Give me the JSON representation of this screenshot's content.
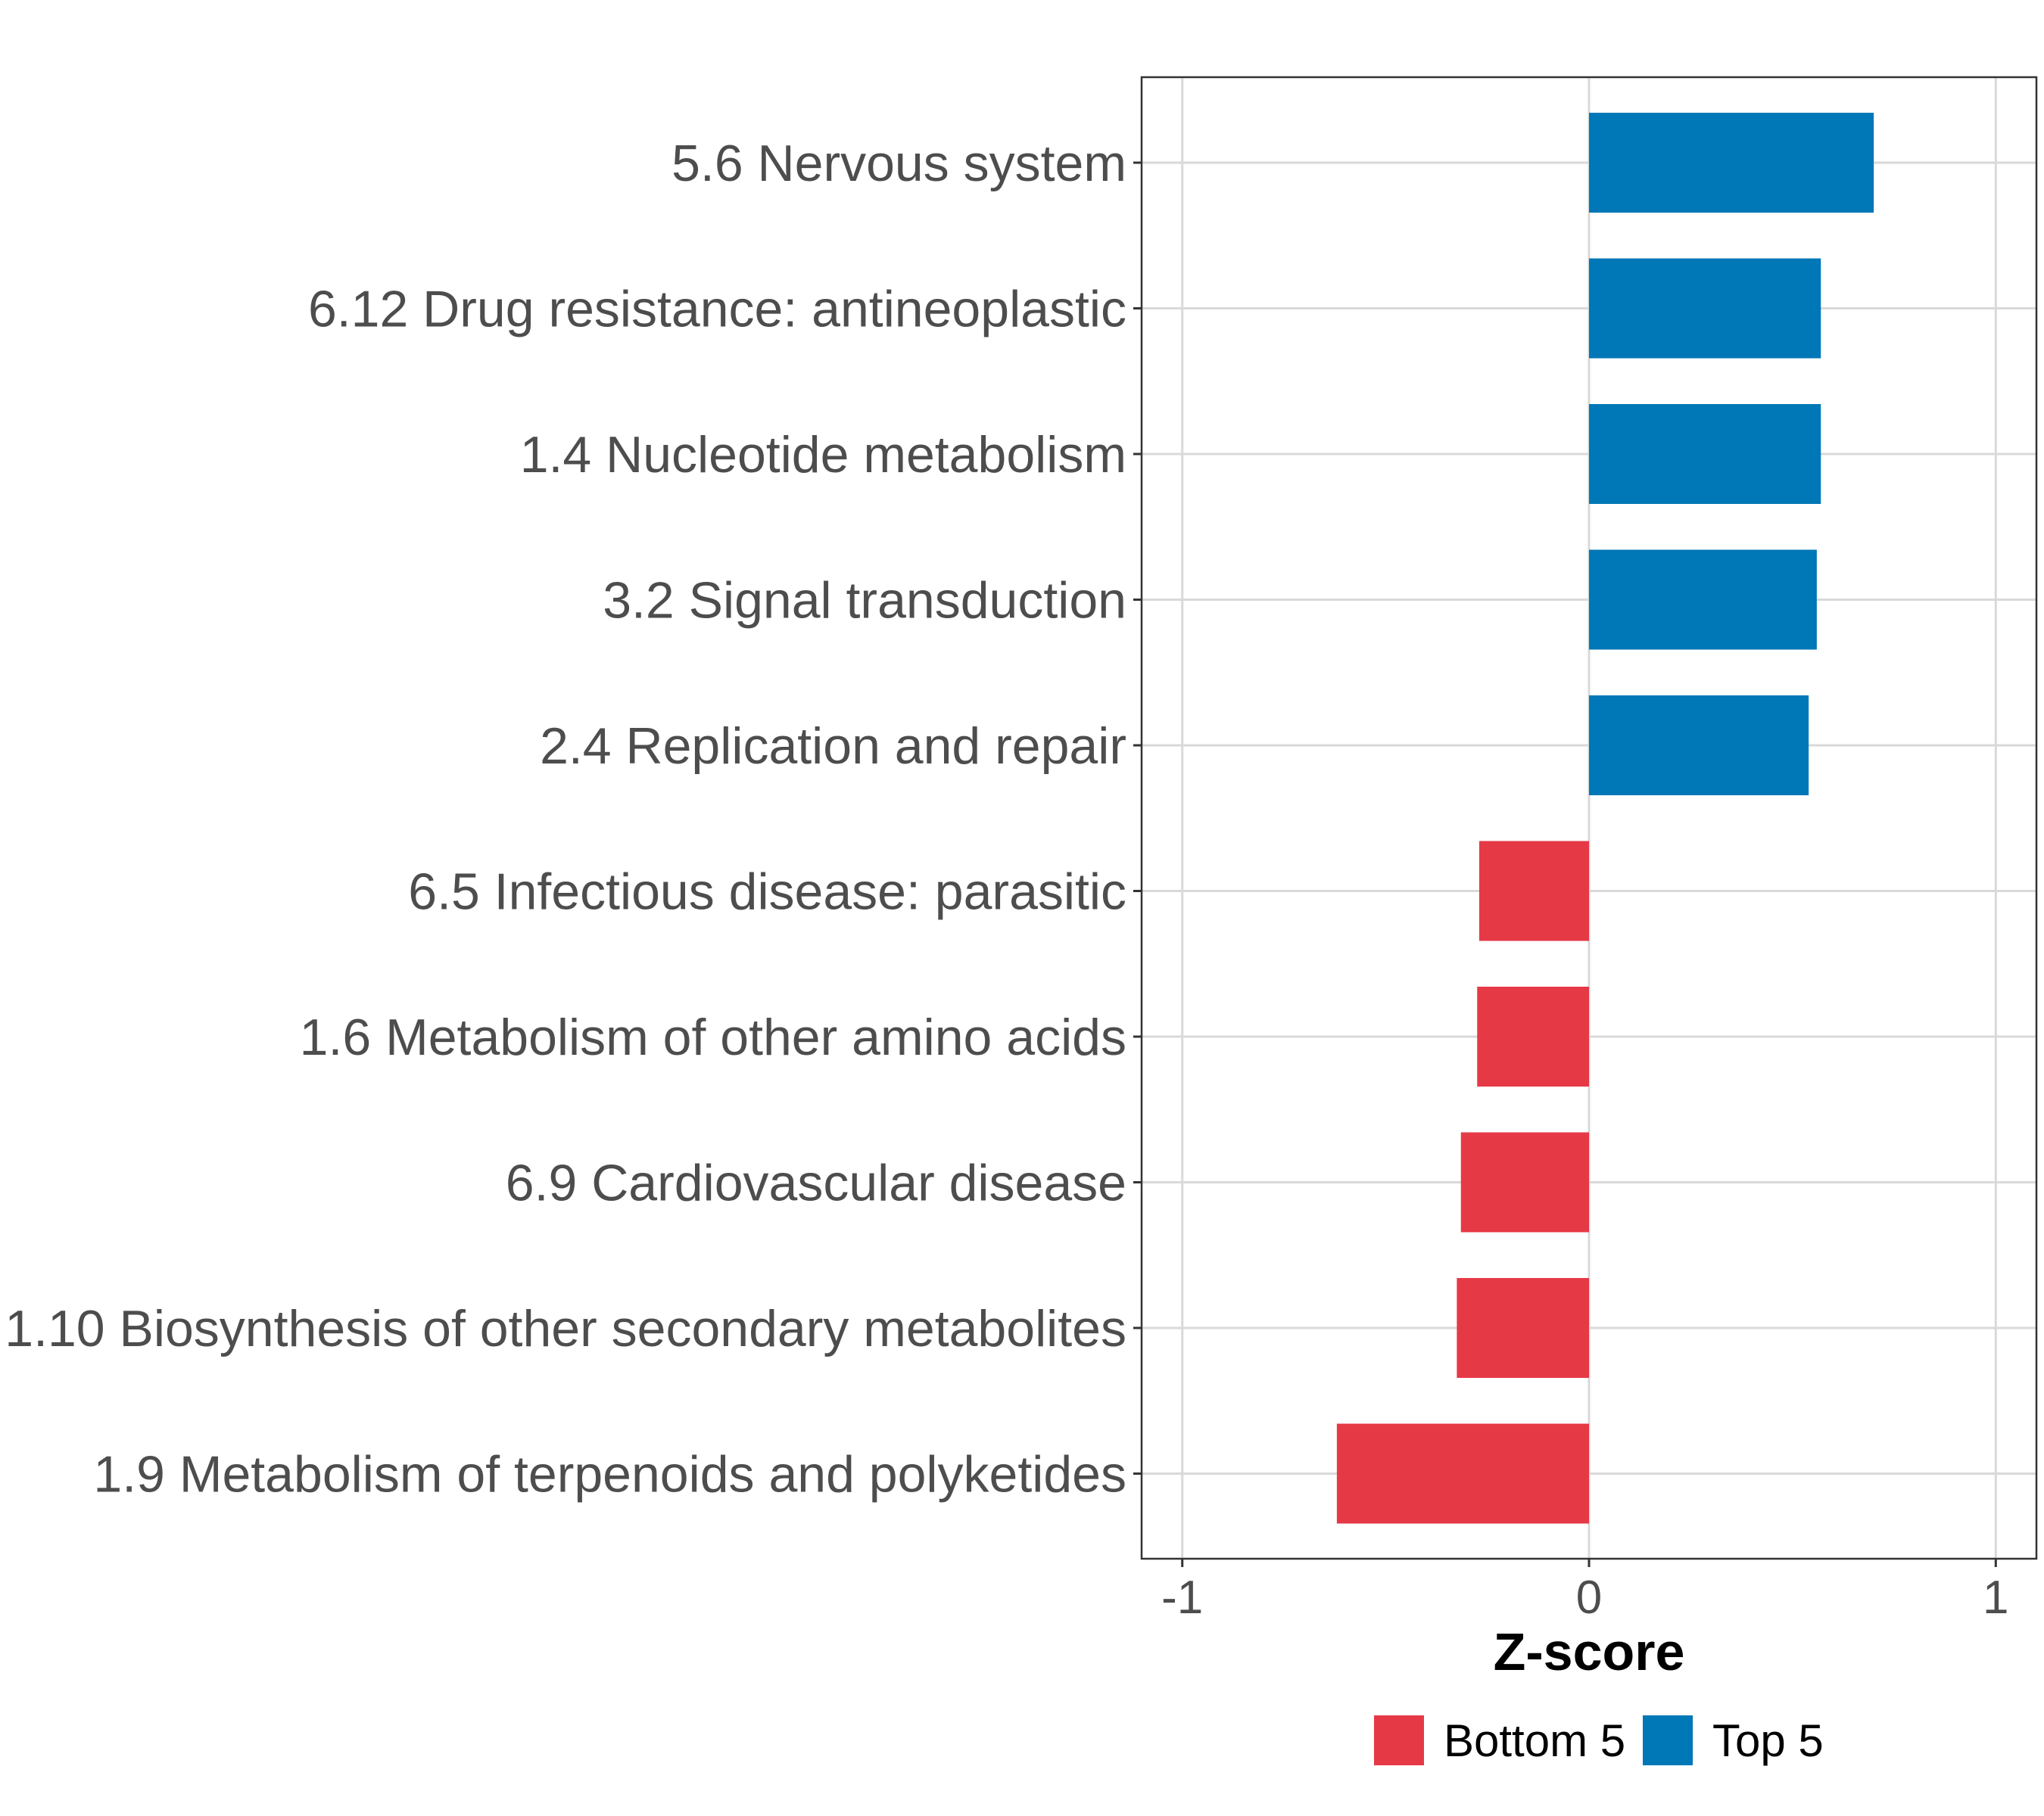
{
  "chart_data": {
    "type": "bar",
    "orientation": "horizontal",
    "categories": [
      "5.6 Nervous system",
      "6.12 Drug resistance: antineoplastic",
      "1.4 Nucleotide metabolism",
      "3.2 Signal transduction",
      "2.4 Replication and repair",
      "6.5 Infectious disease: parasitic",
      "1.6 Metabolism of other amino acids",
      "6.9 Cardiovascular disease",
      "1.10 Biosynthesis of other secondary metabolites",
      "1.9 Metabolism of terpenoids and polyketides"
    ],
    "values": [
      0.7,
      0.57,
      0.57,
      0.56,
      0.54,
      -0.27,
      -0.275,
      -0.315,
      -0.325,
      -0.62
    ],
    "groups": [
      "Top 5",
      "Top 5",
      "Top 5",
      "Top 5",
      "Top 5",
      "Bottom 5",
      "Bottom 5",
      "Bottom 5",
      "Bottom 5",
      "Bottom 5"
    ],
    "xlabel": "Z-score",
    "ylabel": "",
    "xlim": [
      -1.1,
      1.1
    ],
    "xticks": [
      -1,
      0,
      1
    ],
    "xtick_labels": [
      "-1",
      "0",
      "1"
    ],
    "grid": true,
    "legend": {
      "position": "bottom",
      "entries": [
        {
          "label": "Bottom 5",
          "color": "#e63946"
        },
        {
          "label": "Top 5",
          "color": "#0077b6"
        }
      ]
    }
  }
}
